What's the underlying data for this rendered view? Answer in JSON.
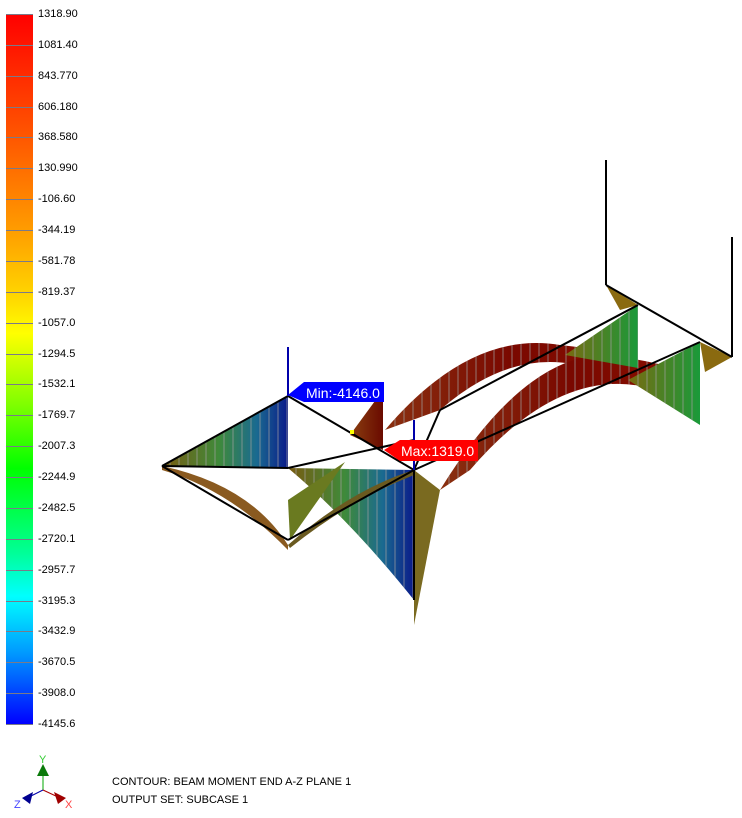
{
  "legend": {
    "values": [
      "1318.90",
      "1081.40",
      "843.770",
      "606.180",
      "368.580",
      "130.990",
      "-106.60",
      "-344.19",
      "-581.78",
      "-819.37",
      "-1057.0",
      "-1294.5",
      "-1532.1",
      "-1769.7",
      "-2007.3",
      "-2244.9",
      "-2482.5",
      "-2720.1",
      "-2957.7",
      "-3195.3",
      "-3432.9",
      "-3670.5",
      "-3908.0",
      "-4145.6"
    ],
    "max_color": "#ff0000",
    "min_color": "#0000ff"
  },
  "markers": {
    "min_label": "Min:-4146.0",
    "max_label": "Max:1319.0",
    "min_color": "#0000ff",
    "max_color": "#ff0000"
  },
  "info": {
    "contour": "CONTOUR: BEAM MOMENT END A-Z PLANE 1",
    "output_set": "OUTPUT SET: SUBCASE 1"
  },
  "triad": {
    "x": "X",
    "y": "Y",
    "z": "Z"
  }
}
